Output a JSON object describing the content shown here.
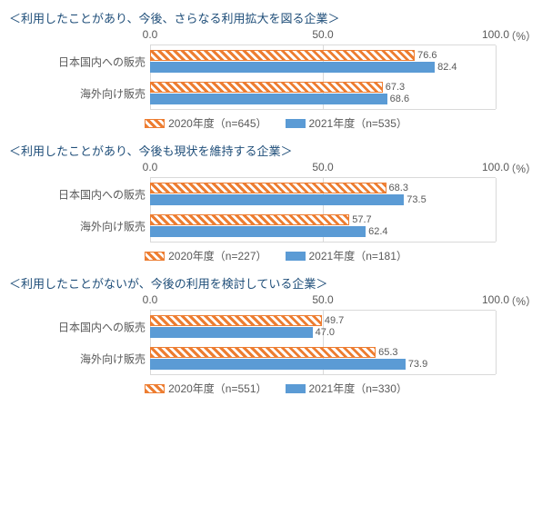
{
  "xmax": 100,
  "ticks": [
    0,
    50,
    100
  ],
  "tick_labels": [
    "0.0",
    "50.0",
    "100.0"
  ],
  "unit": "（%）",
  "colors": {
    "orange": "#ed7d31",
    "blue": "#5b9bd5",
    "grid": "#d9d9d9",
    "text": "#595959",
    "title": "#1f4e79"
  },
  "categories": [
    "日本国内への販売",
    "海外向け販売"
  ],
  "panels": [
    {
      "title": "＜利用したことがあり、今後、さらなる利用拡大を図る企業＞",
      "legend": {
        "s1": "2020年度（n=645）",
        "s2": "2021年度（n=535）"
      },
      "data": [
        {
          "s1": 76.6,
          "s2": 82.4,
          "s1_label": "76.6",
          "s2_label": "82.4"
        },
        {
          "s1": 67.3,
          "s2": 68.6,
          "s1_label": "67.3",
          "s2_label": "68.6"
        }
      ]
    },
    {
      "title": "＜利用したことがあり、今後も現状を維持する企業＞",
      "legend": {
        "s1": "2020年度（n=227）",
        "s2": "2021年度（n=181）"
      },
      "data": [
        {
          "s1": 68.3,
          "s2": 73.5,
          "s1_label": "68.3",
          "s2_label": "73.5"
        },
        {
          "s1": 57.7,
          "s2": 62.4,
          "s1_label": "57.7",
          "s2_label": "62.4"
        }
      ]
    },
    {
      "title": "＜利用したことがないが、今後の利用を検討している企業＞",
      "legend": {
        "s1": "2020年度（n=551）",
        "s2": "2021年度（n=330）"
      },
      "data": [
        {
          "s1": 49.7,
          "s2": 47.0,
          "s1_label": "49.7",
          "s2_label": "47.0"
        },
        {
          "s1": 65.3,
          "s2": 73.9,
          "s1_label": "65.3",
          "s2_label": "73.9"
        }
      ]
    }
  ]
}
